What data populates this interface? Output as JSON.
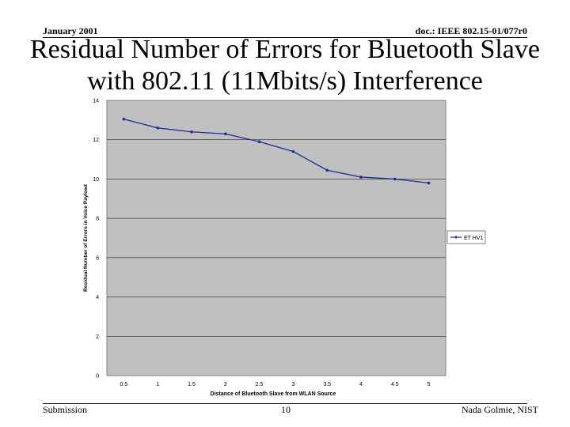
{
  "header": {
    "date": "January 2001",
    "doc_id": "doc.: IEEE 802.15-01/077r0"
  },
  "slide": {
    "title_line1": "Residual Number of Errors for Bluetooth Slave",
    "title_line2": "with 802.11 (11Mbits/s) Interference"
  },
  "footer": {
    "left": "Submission",
    "page": "10",
    "author": "Nada Golmie, NIST"
  },
  "colors": {
    "plot_bg": "#c0c0c0",
    "series": "#1f2f8f",
    "gridline": "#000000"
  },
  "chart_data": {
    "type": "line",
    "title": "",
    "xlabel": "Distance of Bluetooth Slave from WLAN Source",
    "ylabel": "Residual Number of Errors in Voice Payload",
    "categories": [
      "0.5",
      "1",
      "1.5",
      "2",
      "2.5",
      "3",
      "3.5",
      "4",
      "4.5",
      "5"
    ],
    "series": [
      {
        "name": "ET HV1",
        "values": [
          13.05,
          12.6,
          12.4,
          12.3,
          11.9,
          11.4,
          10.45,
          10.1,
          10.0,
          9.8
        ]
      }
    ],
    "ylim": [
      0,
      14
    ],
    "yticks": [
      0,
      2,
      4,
      6,
      8,
      10,
      12,
      14
    ],
    "grid": true,
    "legend": "right"
  }
}
